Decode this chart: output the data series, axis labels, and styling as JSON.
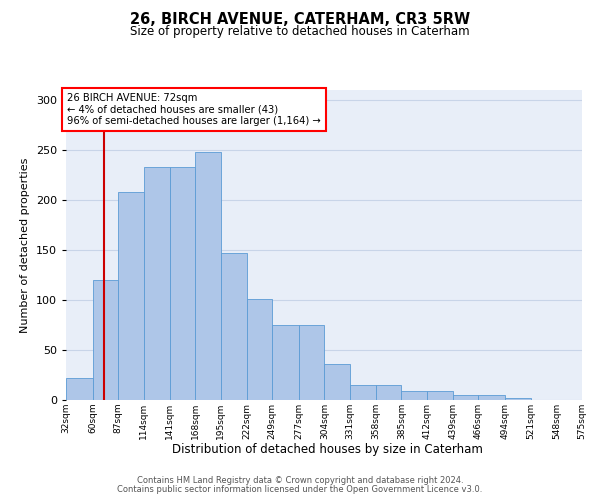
{
  "title": "26, BIRCH AVENUE, CATERHAM, CR3 5RW",
  "subtitle": "Size of property relative to detached houses in Caterham",
  "xlabel": "Distribution of detached houses by size in Caterham",
  "ylabel": "Number of detached properties",
  "footer_line1": "Contains HM Land Registry data © Crown copyright and database right 2024.",
  "footer_line2": "Contains public sector information licensed under the Open Government Licence v3.0.",
  "annotation_title": "26 BIRCH AVENUE: 72sqm",
  "annotation_line2": "← 4% of detached houses are smaller (43)",
  "annotation_line3": "96% of semi-detached houses are larger (1,164) →",
  "bar_color": "#aec6e8",
  "bar_edge_color": "#5b9bd5",
  "redline_color": "#cc0000",
  "bins": [
    32,
    60,
    87,
    114,
    141,
    168,
    195,
    222,
    249,
    277,
    304,
    331,
    358,
    385,
    412,
    439,
    466,
    494,
    521,
    548,
    575
  ],
  "bin_labels": [
    "32sqm",
    "60sqm",
    "87sqm",
    "114sqm",
    "141sqm",
    "168sqm",
    "195sqm",
    "222sqm",
    "249sqm",
    "277sqm",
    "304sqm",
    "331sqm",
    "358sqm",
    "385sqm",
    "412sqm",
    "439sqm",
    "466sqm",
    "494sqm",
    "521sqm",
    "548sqm",
    "575sqm"
  ],
  "bar_heights": [
    22,
    120,
    208,
    233,
    233,
    248,
    147,
    101,
    75,
    75,
    36,
    15,
    15,
    9,
    9,
    5,
    5,
    2,
    0,
    0,
    2
  ],
  "redline_x": 72,
  "ylim": [
    0,
    310
  ],
  "yticks": [
    0,
    50,
    100,
    150,
    200,
    250,
    300
  ],
  "grid_color": "#c8d4e8",
  "background_color": "#e8eef8",
  "figwidth": 6.0,
  "figheight": 5.0,
  "dpi": 100
}
